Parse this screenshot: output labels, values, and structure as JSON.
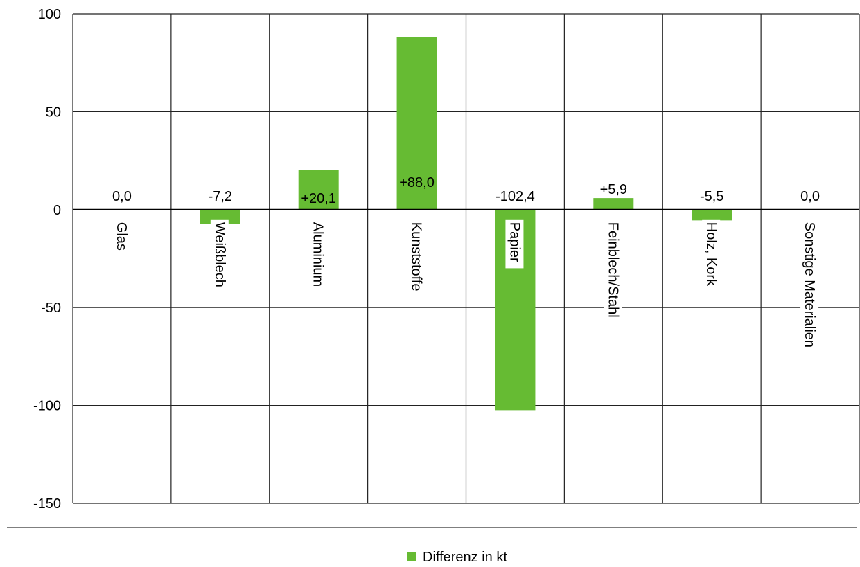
{
  "chart_data": {
    "type": "bar",
    "categories": [
      "Glas",
      "Weißblech",
      "Aluminium",
      "Kunststoffe",
      "Papier",
      "Feinblech/Stahl",
      "Holz, Kork",
      "Sonstige Materialien"
    ],
    "series": [
      {
        "name": "Differenz in kt",
        "values": [
          0.0,
          -7.2,
          20.1,
          88.0,
          -102.4,
          5.9,
          -5.5,
          0.0
        ],
        "data_labels": [
          "0,0",
          "-7,2",
          "+20,1",
          "+88,0",
          "-102,4",
          "+5,9",
          "-5,5",
          "0,0"
        ],
        "color": "#66bb33"
      }
    ],
    "ylim": [
      -150,
      100
    ],
    "y_ticks": [
      100,
      50,
      0,
      -50,
      -100,
      -150
    ],
    "y_tick_labels": [
      "100",
      "50",
      "0",
      "-50",
      "-100",
      "-150"
    ],
    "grid": true,
    "legend_position": "bottom",
    "title": "",
    "xlabel": "",
    "ylabel": ""
  }
}
